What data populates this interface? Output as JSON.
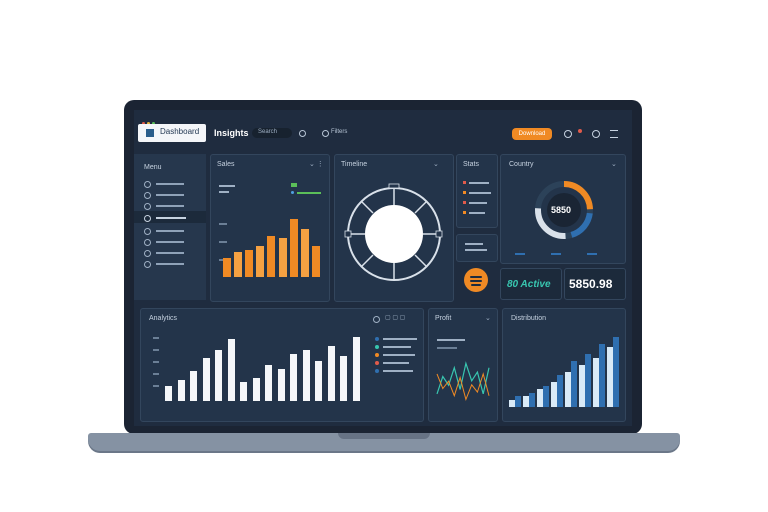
{
  "app": {
    "brand": "Dashboard",
    "title": "Insights",
    "search_placeholder": "Search",
    "filter_label": "Filters",
    "action_button": "Download"
  },
  "sidebar": {
    "title": "Menu"
  },
  "panels": {
    "sales": "Sales",
    "timeline": "Timeline",
    "stats": "Stats",
    "country": "Country",
    "metric_a": "80 Active",
    "metric_b": "5850.98",
    "gauge_value": "5850",
    "analytics": "Analytics",
    "profit": "Profit",
    "distribution": "Distribution"
  },
  "chart_data": [
    {
      "type": "bar",
      "values": [
        18,
        24,
        26,
        30,
        40,
        38,
        56,
        46,
        30
      ]
    },
    {
      "type": "bar",
      "values": [
        14,
        20,
        28,
        40,
        48,
        58,
        18,
        22,
        34,
        30,
        44,
        48,
        38,
        52,
        42,
        60
      ]
    },
    {
      "type": "line",
      "values": [
        6,
        14,
        10,
        18,
        8,
        20,
        12,
        16,
        6,
        18
      ]
    },
    {
      "type": "bar",
      "series": [
        {
          "values": [
            6,
            8,
            12,
            18,
            26,
            30,
            36,
            40
          ]
        },
        {
          "values": [
            4,
            6,
            10,
            14,
            20,
            24,
            28,
            34
          ]
        }
      ]
    }
  ],
  "colors": {
    "orange": "#f08a24",
    "white": "#f4f6f9",
    "blue": "#2f6fb0",
    "teal": "#38c6b0"
  }
}
